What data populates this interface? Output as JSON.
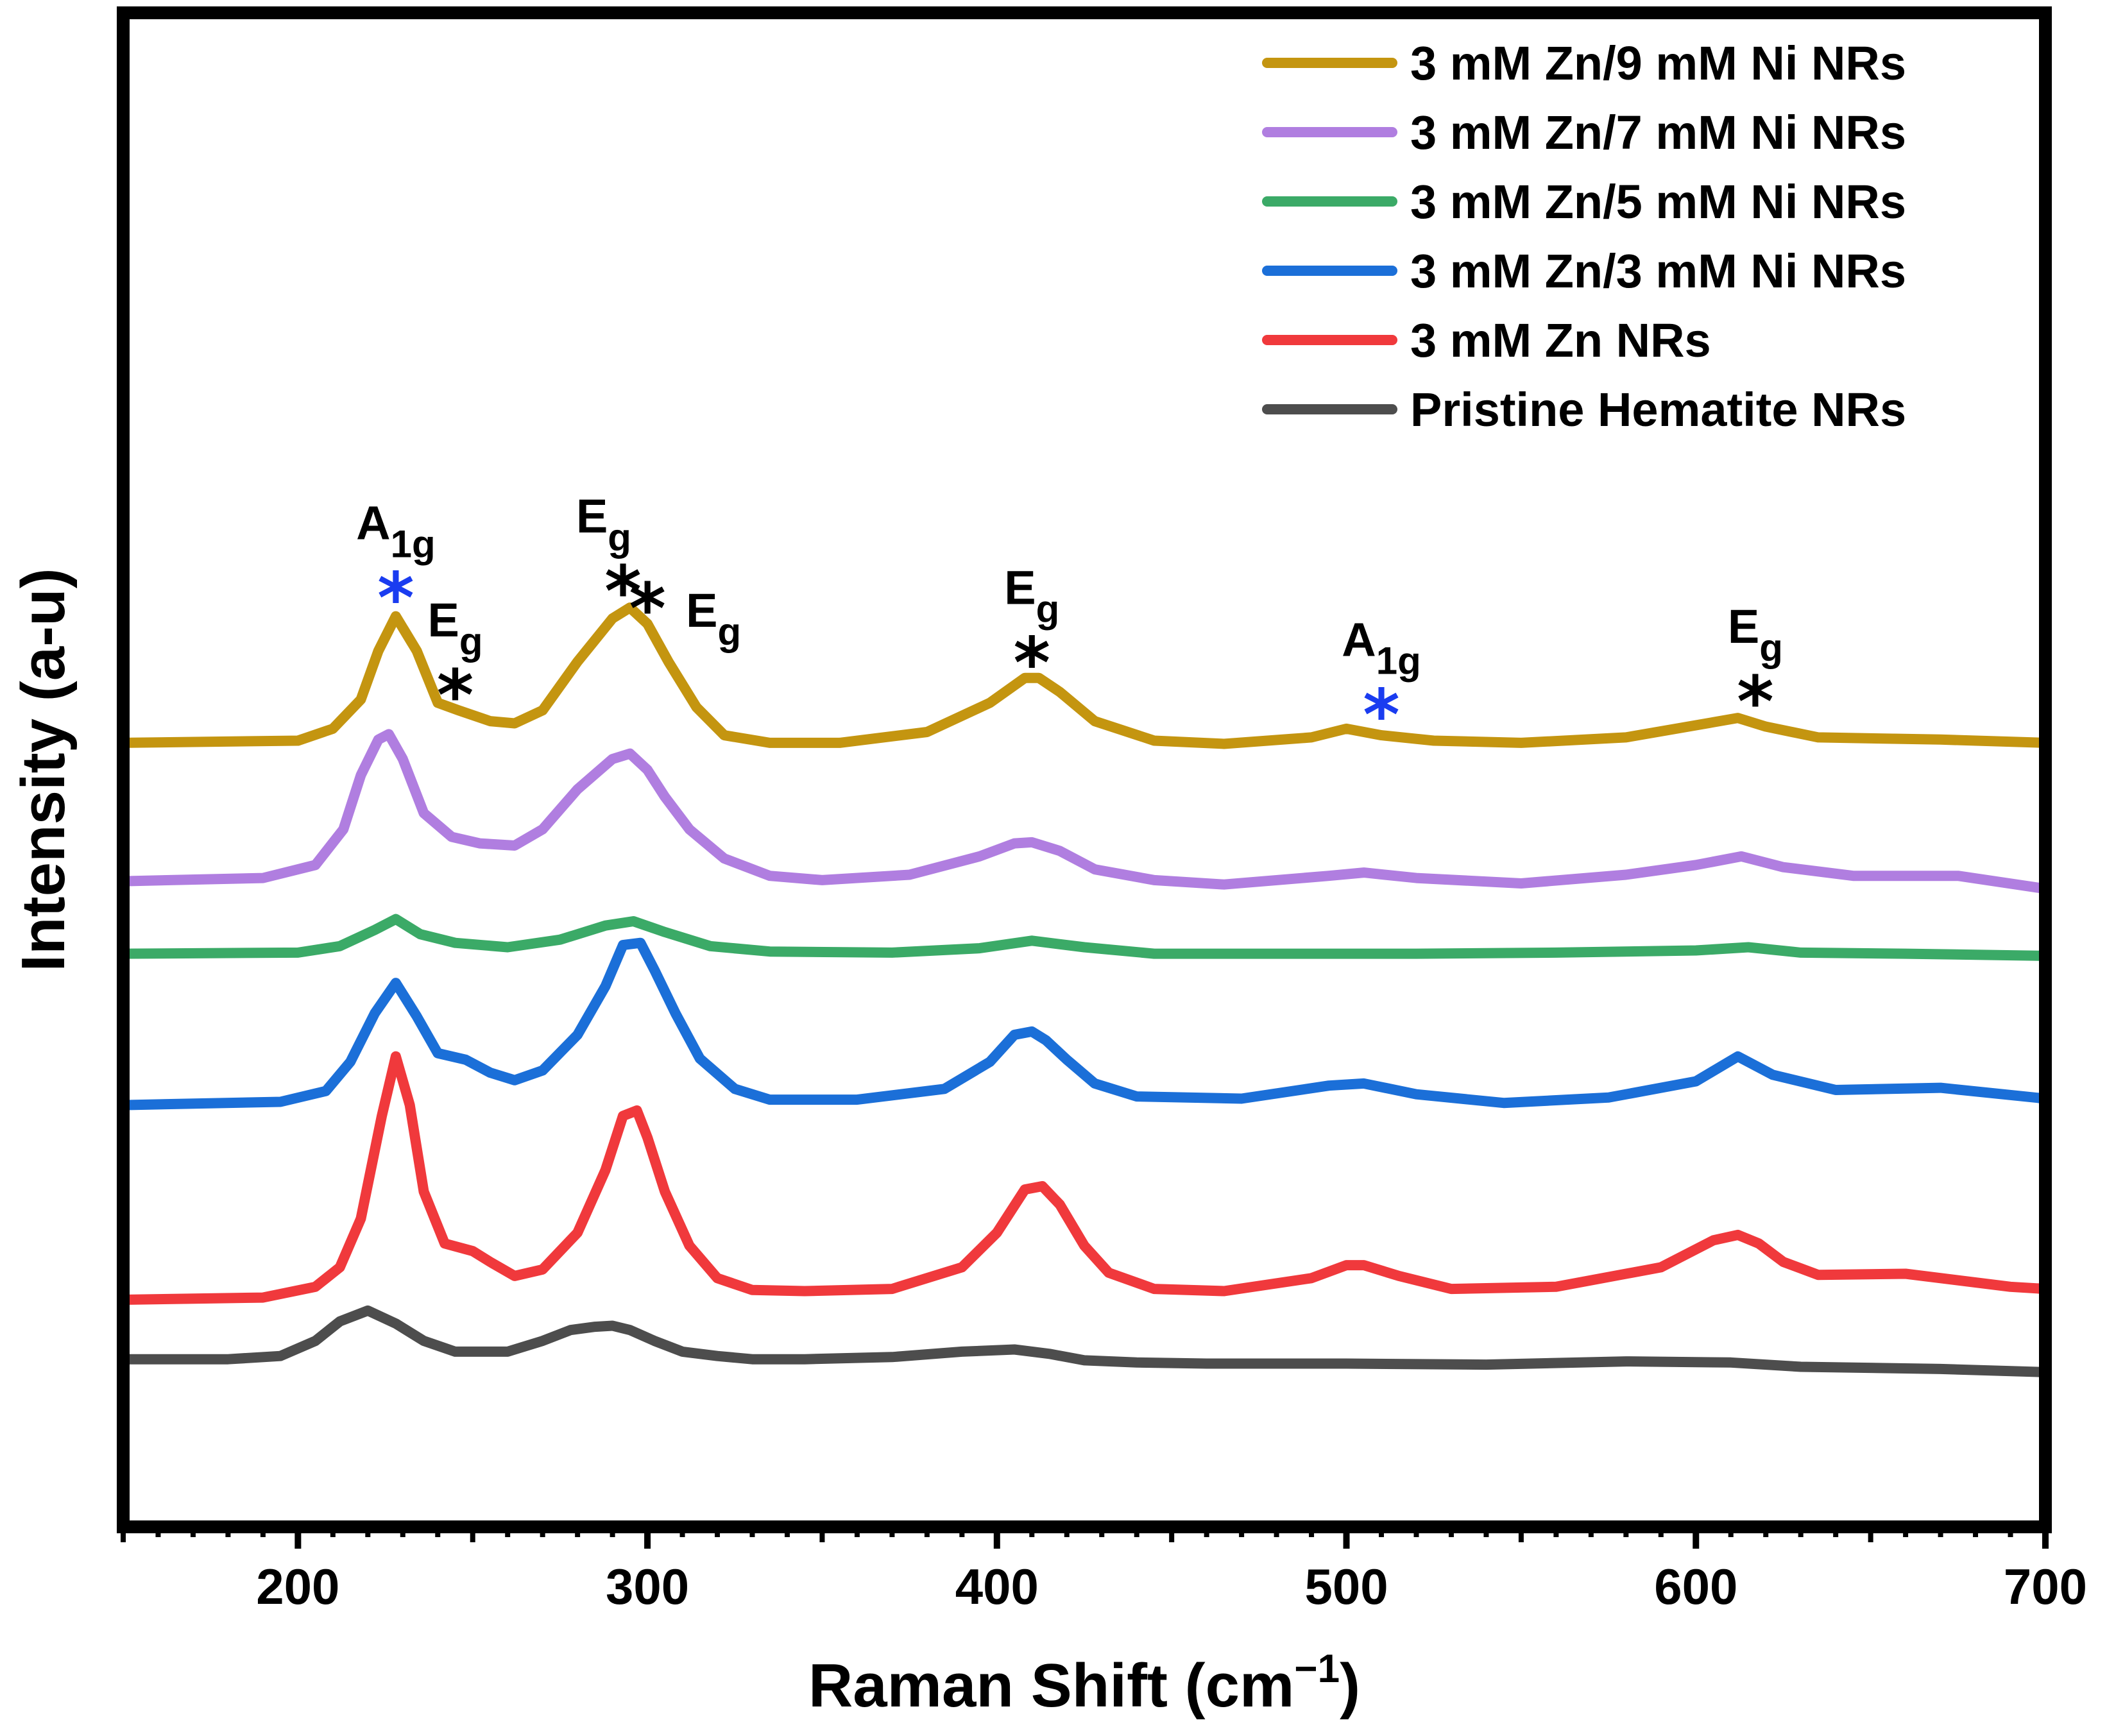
{
  "chart_data": {
    "type": "line",
    "title": "",
    "xlabel": "Raman Shift (cm",
    "xlabel_sup": "−1",
    "xlabel_end": ")",
    "ylabel": "Intensity (a-u)",
    "xlim": [
      150,
      700
    ],
    "ylim": [
      0,
      14
    ],
    "xticks": [
      200,
      300,
      400,
      500,
      600,
      700
    ],
    "legend_position": "top-right",
    "series": [
      {
        "name": "Pristine Hematite NRs",
        "color": "#4d4d4d",
        "x": [
          150,
          180,
          195,
          205,
          212,
          220,
          228,
          236,
          245,
          260,
          270,
          278,
          285,
          290,
          295,
          302,
          310,
          320,
          330,
          345,
          370,
          390,
          405,
          415,
          425,
          440,
          460,
          500,
          540,
          580,
          610,
          630,
          670,
          700
        ],
        "y": [
          1.55,
          1.55,
          1.58,
          1.72,
          1.9,
          2.0,
          1.88,
          1.72,
          1.62,
          1.62,
          1.72,
          1.82,
          1.85,
          1.86,
          1.82,
          1.72,
          1.62,
          1.58,
          1.55,
          1.55,
          1.57,
          1.62,
          1.64,
          1.6,
          1.54,
          1.52,
          1.51,
          1.51,
          1.5,
          1.53,
          1.52,
          1.48,
          1.46,
          1.43
        ]
      },
      {
        "name": "3 mM Zn NRs",
        "color": "#f0393c",
        "x": [
          150,
          190,
          205,
          212,
          218,
          224,
          228,
          232,
          236,
          242,
          250,
          255,
          262,
          270,
          280,
          288,
          293,
          297,
          300,
          305,
          312,
          320,
          330,
          345,
          370,
          390,
          400,
          408,
          413,
          418,
          425,
          432,
          445,
          465,
          490,
          500,
          505,
          515,
          530,
          560,
          590,
          605,
          612,
          618,
          625,
          635,
          660,
          690,
          700
        ],
        "y": [
          2.1,
          2.12,
          2.22,
          2.4,
          2.85,
          3.8,
          4.35,
          3.9,
          3.1,
          2.62,
          2.55,
          2.45,
          2.32,
          2.38,
          2.72,
          3.3,
          3.8,
          3.85,
          3.6,
          3.1,
          2.6,
          2.3,
          2.19,
          2.18,
          2.2,
          2.4,
          2.72,
          3.12,
          3.15,
          2.98,
          2.6,
          2.35,
          2.2,
          2.18,
          2.3,
          2.42,
          2.42,
          2.32,
          2.2,
          2.22,
          2.4,
          2.65,
          2.7,
          2.62,
          2.45,
          2.33,
          2.34,
          2.22,
          2.2
        ]
      },
      {
        "name": "3 mM Zn/3 mM Ni NRs",
        "color": "#1b6fd8",
        "x": [
          150,
          195,
          208,
          215,
          222,
          228,
          234,
          240,
          248,
          255,
          262,
          270,
          280,
          288,
          293,
          298,
          302,
          308,
          315,
          325,
          335,
          360,
          385,
          398,
          405,
          410,
          414,
          420,
          428,
          440,
          470,
          495,
          505,
          520,
          545,
          575,
          600,
          612,
          622,
          640,
          670,
          700
        ],
        "y": [
          3.9,
          3.93,
          4.03,
          4.3,
          4.75,
          5.03,
          4.72,
          4.38,
          4.32,
          4.2,
          4.13,
          4.22,
          4.55,
          5.0,
          5.38,
          5.4,
          5.15,
          4.75,
          4.33,
          4.05,
          3.95,
          3.95,
          4.05,
          4.3,
          4.55,
          4.58,
          4.5,
          4.32,
          4.1,
          3.98,
          3.96,
          4.08,
          4.1,
          4.0,
          3.92,
          3.97,
          4.12,
          4.35,
          4.18,
          4.04,
          4.06,
          3.96
        ]
      },
      {
        "name": "3 mM Zn/5 mM Ni NRs",
        "color": "#3baa67",
        "x": [
          150,
          200,
          212,
          222,
          228,
          235,
          245,
          260,
          275,
          288,
          296,
          305,
          318,
          335,
          370,
          395,
          410,
          425,
          445,
          480,
          520,
          560,
          600,
          615,
          630,
          660,
          700
        ],
        "y": [
          5.3,
          5.31,
          5.37,
          5.52,
          5.62,
          5.48,
          5.4,
          5.36,
          5.43,
          5.56,
          5.6,
          5.5,
          5.37,
          5.32,
          5.31,
          5.35,
          5.42,
          5.36,
          5.3,
          5.3,
          5.3,
          5.31,
          5.33,
          5.36,
          5.31,
          5.3,
          5.28
        ]
      },
      {
        "name": "3 mM Zn/7 mM Ni NRs",
        "color": "#b07ee0",
        "x": [
          150,
          190,
          205,
          213,
          218,
          223,
          226,
          230,
          236,
          244,
          252,
          262,
          270,
          280,
          290,
          295,
          300,
          305,
          312,
          322,
          335,
          350,
          375,
          395,
          405,
          410,
          418,
          428,
          445,
          465,
          495,
          505,
          520,
          550,
          580,
          600,
          613,
          625,
          645,
          675,
          700
        ],
        "y": [
          5.97,
          6.0,
          6.12,
          6.45,
          6.95,
          7.28,
          7.33,
          7.1,
          6.6,
          6.38,
          6.32,
          6.3,
          6.45,
          6.82,
          7.1,
          7.15,
          7.0,
          6.75,
          6.45,
          6.18,
          6.02,
          5.98,
          6.03,
          6.2,
          6.32,
          6.33,
          6.25,
          6.08,
          5.98,
          5.94,
          6.02,
          6.05,
          6.0,
          5.95,
          6.03,
          6.12,
          6.2,
          6.1,
          6.02,
          6.02,
          5.9
        ]
      },
      {
        "name": "3 mM Zn/9 mM Ni NRs",
        "color": "#c49510",
        "x": [
          150,
          200,
          210,
          218,
          223,
          228,
          234,
          240,
          246,
          255,
          262,
          270,
          280,
          290,
          295,
          300,
          306,
          314,
          322,
          335,
          355,
          380,
          398,
          408,
          412,
          418,
          428,
          445,
          465,
          490,
          500,
          510,
          525,
          550,
          580,
          605,
          612,
          620,
          635,
          670,
          700
        ],
        "y": [
          7.25,
          7.27,
          7.38,
          7.65,
          8.1,
          8.42,
          8.1,
          7.62,
          7.55,
          7.45,
          7.43,
          7.55,
          8.0,
          8.4,
          8.5,
          8.35,
          8.0,
          7.58,
          7.32,
          7.25,
          7.25,
          7.35,
          7.62,
          7.85,
          7.85,
          7.72,
          7.45,
          7.27,
          7.24,
          7.3,
          7.38,
          7.32,
          7.27,
          7.25,
          7.3,
          7.44,
          7.48,
          7.4,
          7.3,
          7.28,
          7.25
        ]
      }
    ],
    "annotations": [
      {
        "label": "A",
        "sub": "1g",
        "x": 228,
        "color": "#1a3cf0",
        "marker_y": 8.6
      },
      {
        "label": "E",
        "sub": "g",
        "x": 245,
        "color": "#000000",
        "marker_y": 7.7
      },
      {
        "label": "E",
        "sub": "g",
        "x": 293,
        "color": "#000000",
        "marker_y": 8.66
      },
      {
        "label": "E",
        "sub": "g",
        "x": 300,
        "color": "#000000",
        "marker_y": 8.5
      },
      {
        "label": "E",
        "sub": "g",
        "x": 410,
        "color": "#000000",
        "marker_y": 8.0
      },
      {
        "label": "A",
        "sub": "1g",
        "x": 510,
        "color": "#1a3cf0",
        "marker_y": 7.52
      },
      {
        "label": "E",
        "sub": "g",
        "x": 617,
        "color": "#000000",
        "marker_y": 7.64
      }
    ],
    "legend_order": [
      "3 mM Zn/9 mM Ni NRs",
      "3 mM Zn/7 mM Ni NRs",
      "3 mM Zn/5 mM Ni NRs",
      "3 mM Zn/3 mM Ni NRs",
      "3 mM Zn NRs",
      "Pristine Hematite NRs"
    ]
  }
}
